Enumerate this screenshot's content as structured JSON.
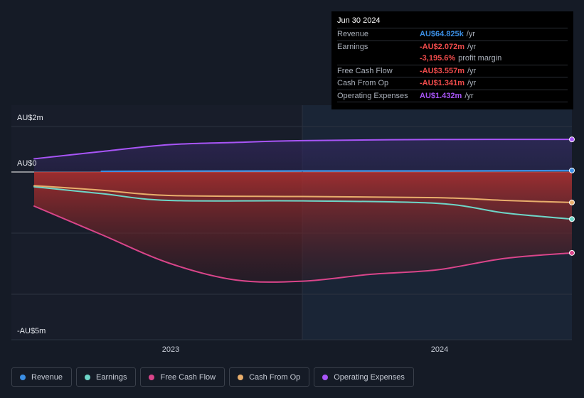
{
  "chart_data": {
    "type": "line",
    "y_ticks": [
      "AU$2m",
      "AU$0",
      "-AU$5m"
    ],
    "x_ticks": [
      "2023",
      "2024"
    ],
    "ylim": [
      -5.5,
      2.2
    ],
    "series": [
      {
        "name": "Revenue",
        "color": "#3b8fe5",
        "points": [
          [
            0.125,
            0.03
          ],
          [
            0.25,
            0.04
          ],
          [
            0.5,
            0.05
          ],
          [
            0.75,
            0.05
          ],
          [
            1.0,
            0.065
          ]
        ]
      },
      {
        "name": "Earnings",
        "color": "#6ed6c8",
        "points": [
          [
            0.0,
            -0.65
          ],
          [
            0.125,
            -0.95
          ],
          [
            0.25,
            -1.25
          ],
          [
            0.5,
            -1.27
          ],
          [
            0.75,
            -1.38
          ],
          [
            0.875,
            -1.8
          ],
          [
            1.0,
            -2.07
          ]
        ]
      },
      {
        "name": "Free Cash Flow",
        "color": "#d9458a",
        "points": [
          [
            0.0,
            -1.5
          ],
          [
            0.125,
            -2.75
          ],
          [
            0.25,
            -4.0
          ],
          [
            0.375,
            -4.75
          ],
          [
            0.5,
            -4.8
          ],
          [
            0.625,
            -4.5
          ],
          [
            0.75,
            -4.3
          ],
          [
            0.875,
            -3.8
          ],
          [
            1.0,
            -3.557
          ]
        ]
      },
      {
        "name": "Cash From Op",
        "color": "#e8ae6c",
        "points": [
          [
            0.0,
            -0.6
          ],
          [
            0.125,
            -0.8
          ],
          [
            0.25,
            -1.03
          ],
          [
            0.5,
            -1.08
          ],
          [
            0.75,
            -1.13
          ],
          [
            0.875,
            -1.25
          ],
          [
            1.0,
            -1.341
          ]
        ]
      },
      {
        "name": "Operating Expenses",
        "color": "#a855f7",
        "points": [
          [
            0.0,
            0.58
          ],
          [
            0.125,
            0.9
          ],
          [
            0.25,
            1.2
          ],
          [
            0.375,
            1.3
          ],
          [
            0.5,
            1.38
          ],
          [
            0.75,
            1.43
          ],
          [
            1.0,
            1.432
          ]
        ]
      }
    ]
  },
  "tooltip": {
    "date": "Jun 30 2024",
    "rows": [
      {
        "label": "Revenue",
        "value": "AU$64.825k",
        "unit": "/yr",
        "color": "#3b8fe5"
      },
      {
        "label": "Earnings",
        "value": "-AU$2.072m",
        "unit": "/yr",
        "color": "#f04b4b"
      },
      {
        "label": "",
        "value": "-3,195.6%",
        "unit": "profit margin",
        "color": "#f04b4b"
      },
      {
        "label": "Free Cash Flow",
        "value": "-AU$3.557m",
        "unit": "/yr",
        "color": "#f04b4b"
      },
      {
        "label": "Cash From Op",
        "value": "-AU$1.341m",
        "unit": "/yr",
        "color": "#f04b4b"
      },
      {
        "label": "Operating Expenses",
        "value": "AU$1.432m",
        "unit": "/yr",
        "color": "#a855f7"
      }
    ]
  },
  "legend": [
    {
      "label": "Revenue",
      "color": "#3b8fe5"
    },
    {
      "label": "Earnings",
      "color": "#6ed6c8"
    },
    {
      "label": "Free Cash Flow",
      "color": "#d9458a"
    },
    {
      "label": "Cash From Op",
      "color": "#e8ae6c"
    },
    {
      "label": "Operating Expenses",
      "color": "#a855f7"
    }
  ]
}
